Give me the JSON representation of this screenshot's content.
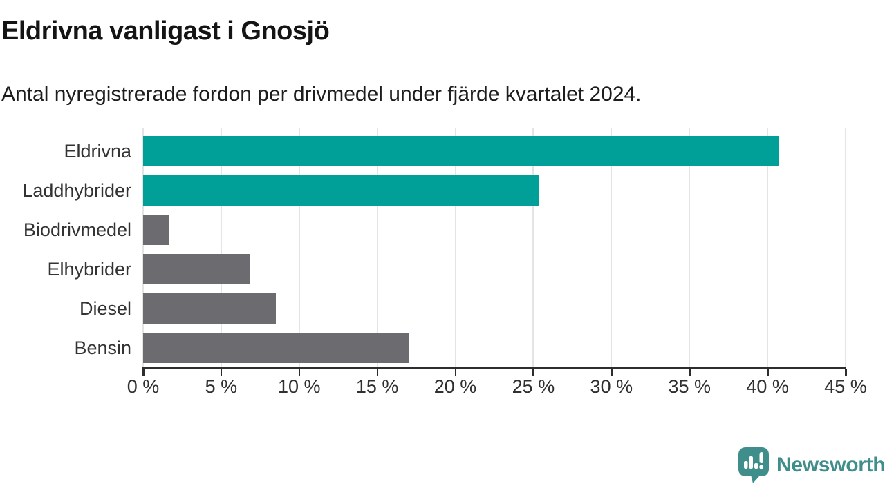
{
  "header": {
    "title": "Eldrivna vanligast i Gnosjö",
    "subtitle": "Antal nyregistrerade fordon per drivmedel under fjärde kvartalet 2024."
  },
  "chart_data": {
    "type": "bar",
    "orientation": "horizontal",
    "title": "Eldrivna vanligast i Gnosjö",
    "subtitle": "Antal nyregistrerade fordon per drivmedel under fjärde kvartalet 2024.",
    "categories": [
      "Eldrivna",
      "Laddhybrider",
      "Biodrivmedel",
      "Elhybrider",
      "Diesel",
      "Bensin"
    ],
    "values": [
      40.7,
      25.4,
      1.7,
      6.8,
      8.5,
      17.0
    ],
    "unit": "%",
    "xlim": [
      0,
      45
    ],
    "x_ticks": [
      0,
      5,
      10,
      15,
      20,
      25,
      30,
      35,
      40,
      45
    ],
    "grid": "vertical-only",
    "legend": "none",
    "bar_colors": [
      "#00a098",
      "#00a098",
      "#6c6b70",
      "#6c6b70",
      "#6c6b70",
      "#6c6b70"
    ],
    "highlight_color": "#00a098",
    "base_color": "#6c6b70",
    "gridline_color": "#e4e4e4",
    "axis_color": "#2d2d2d",
    "label_color": "#333333"
  },
  "branding": {
    "wordmark": "Newsworthy",
    "logo_icon": "newsworthy-speech-bubble-chart-icon",
    "brand_color": "#3f8e8b"
  }
}
